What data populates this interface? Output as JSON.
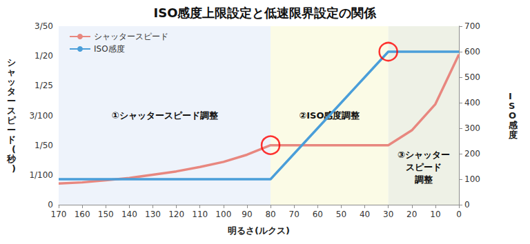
{
  "chart_data": {
    "type": "line",
    "title": "ISO感度上限設定と低速限界設定の関係",
    "xlabel": "明るさ(ルクス)",
    "ylabel": "シャッタースピード(秒)",
    "y2label": "ISO感度",
    "x": [
      170,
      160,
      150,
      140,
      130,
      120,
      110,
      100,
      90,
      80,
      70,
      60,
      50,
      40,
      30,
      20,
      10,
      0
    ],
    "xlim": [
      170,
      0
    ],
    "xticks": [
      170,
      160,
      150,
      140,
      130,
      120,
      110,
      100,
      90,
      80,
      70,
      60,
      50,
      40,
      30,
      20,
      10,
      0
    ],
    "ylim": [
      0,
      0.06
    ],
    "yticks": [
      0,
      {
        "value": 0.01,
        "label": "1/100"
      },
      {
        "value": 0.02,
        "label": "1/50"
      },
      {
        "value": 0.03,
        "label": "3/100"
      },
      {
        "value": 0.04,
        "label": "1/25"
      },
      {
        "value": 0.05,
        "label": "1/20"
      },
      {
        "value": 0.06,
        "label": "3/50"
      }
    ],
    "y2lim": [
      0,
      700
    ],
    "y2ticks": [
      0,
      100,
      200,
      300,
      400,
      500,
      600,
      700
    ],
    "series": [
      {
        "name": "シャッタースピード",
        "color": "#e8877f",
        "axis": "y",
        "values": [
          0.0071,
          0.0075,
          0.0082,
          0.009,
          0.0101,
          0.0112,
          0.0127,
          0.0144,
          0.0168,
          0.02,
          0.02,
          0.02,
          0.02,
          0.02,
          0.02,
          0.025,
          0.0338,
          0.0505
        ]
      },
      {
        "name": "ISO感度",
        "color": "#4a9ed9",
        "axis": "y2",
        "values": [
          100,
          100,
          100,
          100,
          100,
          100,
          100,
          100,
          100,
          100,
          200,
          300,
          400,
          500,
          600,
          600,
          600,
          600
        ]
      }
    ],
    "regions": [
      {
        "from": 170,
        "to": 80,
        "label": "①シャッタースピード調整",
        "color": "#eef3fb"
      },
      {
        "from": 80,
        "to": 30,
        "label": "②ISO感度調整",
        "color": "#fbfbe6"
      },
      {
        "from": 30,
        "to": 0,
        "label": "③シャッター\nスピード\n調整",
        "color": "#eef1e6"
      }
    ],
    "highlights": [
      {
        "x": 80,
        "value": 0.02,
        "axis": "y",
        "color": "#ff0000"
      },
      {
        "x": 30,
        "value": 600,
        "axis": "y2",
        "color": "#ff0000"
      }
    ],
    "grid": false,
    "legend": "upper left"
  }
}
